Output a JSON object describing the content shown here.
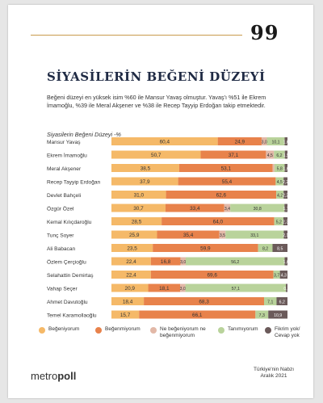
{
  "page_number": "99",
  "title": "SİYASİLERİN BEĞENİ DÜZEYİ",
  "intro": "Beğeni düzeyi en yüksek isim %60 ile Mansur Yavaş olmuştur. Yavaş'ı %51 ile Ekrem İmamoğlu, %39 ile Meral Akşener ve %38 ile Recep Tayyip Erdoğan takip etmektedir.",
  "chart_subtitle": "Siyasilerin Beğeni Düzeyi -%",
  "brand_prefix": "metro",
  "brand_suffix": "poll",
  "source_line1": "Türkiye'nin Nabzı",
  "source_line2": "Aralık 2021",
  "colors": {
    "like": "#f5b968",
    "dislike": "#e8824b",
    "neutral": "#e2b8a7",
    "unknown": "#b9d39b",
    "noanswer": "#6b5a5a"
  },
  "chart_data": {
    "type": "bar",
    "orientation": "horizontal",
    "stacked": true,
    "categories": [
      "Mansur Yavaş",
      "Ekrem İmamoğlu",
      "Meral Akşener",
      "Recep Tayyip Erdoğan",
      "Devlet Bahçeli",
      "Özgür Özel",
      "Kemal Kılıçdaroğlu",
      "Tunç Soyer",
      "Ali Babacan",
      "Özlem Çerçioğlu",
      "Selahattin Demirtaş",
      "Vahap Seçer",
      "Ahmet Davutoğlu",
      "Temel Karamollaoğlu"
    ],
    "labels": [
      [
        "60,4",
        "24,9",
        "3,0",
        "10,1",
        "1,6"
      ],
      [
        "50,7",
        "37,1",
        "4,5",
        "6,2",
        "1,5"
      ],
      [
        "38,5",
        "53,1",
        "",
        "5,8",
        "1,6"
      ],
      [
        "37,9",
        "55,4",
        "",
        "4,5",
        "2,2"
      ],
      [
        "31,0",
        "62,6",
        "",
        "4,2",
        "2,2"
      ],
      [
        "30,7",
        "33,4",
        "3,4",
        "30,8",
        "1,7"
      ],
      [
        "28,5",
        "64,0",
        "",
        "5,2",
        "2,3"
      ],
      [
        "25,9",
        "35,4",
        "3,5",
        "33,1",
        "2,1"
      ],
      [
        "23,5",
        "59,9",
        "",
        "8,2",
        "8,5"
      ],
      [
        "22,4",
        "16,8",
        "3,0",
        "56,2",
        "1,6"
      ],
      [
        "22,4",
        "69,6",
        "",
        "3,7",
        "4,3"
      ],
      [
        "20,9",
        "18,1",
        "3,0",
        "57,1",
        "0,9"
      ],
      [
        "18,4",
        "68,3",
        "",
        "7,1",
        "6,2"
      ],
      [
        "15,7",
        "66,1",
        "",
        "7,3",
        "10,9"
      ]
    ],
    "series": [
      {
        "name": "Beğeniyorum",
        "values": [
          60.4,
          50.7,
          38.5,
          37.9,
          31.0,
          30.7,
          28.5,
          25.9,
          23.5,
          22.4,
          22.4,
          20.9,
          18.4,
          15.7
        ]
      },
      {
        "name": "Beğenmiyorum",
        "values": [
          24.9,
          37.1,
          53.1,
          55.4,
          62.6,
          33.4,
          64.0,
          35.4,
          59.9,
          16.8,
          69.6,
          18.1,
          68.3,
          66.1
        ]
      },
      {
        "name": "Ne beğeniyorum ne beğenmiyorum",
        "values": [
          3.0,
          4.5,
          1.0,
          0.0,
          0.0,
          3.4,
          0.0,
          3.5,
          0.0,
          3.0,
          0.0,
          3.0,
          0.0,
          0.0
        ]
      },
      {
        "name": "Tanımıyorum",
        "values": [
          10.1,
          6.2,
          5.8,
          4.5,
          4.2,
          30.8,
          5.2,
          33.1,
          8.2,
          56.2,
          3.7,
          57.1,
          7.1,
          7.3
        ]
      },
      {
        "name": "Fikrim yok/ Cevap yok",
        "values": [
          1.6,
          1.5,
          1.6,
          2.2,
          2.2,
          1.7,
          2.3,
          2.1,
          8.5,
          1.6,
          4.3,
          0.9,
          6.2,
          10.9
        ]
      }
    ],
    "xlim": [
      0,
      100
    ],
    "legend": "bottom"
  }
}
